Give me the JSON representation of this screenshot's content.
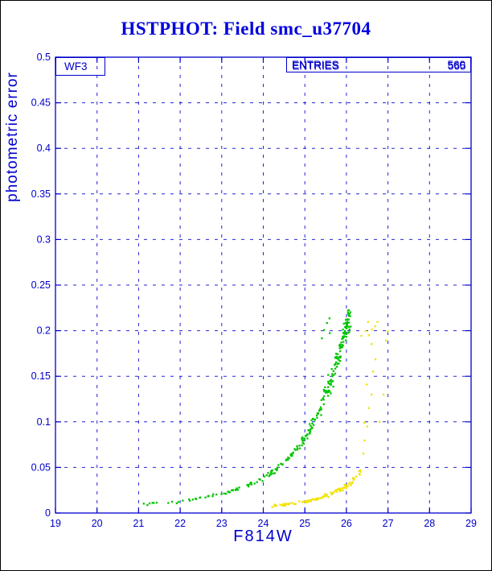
{
  "colors": {
    "background": "#ffffff",
    "frame": "#000000",
    "axis": "#0000cc",
    "title": "#0000dd",
    "green": "#00c400",
    "yellow": "#f2e300"
  },
  "chart_data": {
    "type": "scatter",
    "title": "HSTPHOT: Field smc_u37704",
    "xlabel": "F814W",
    "ylabel": "photometric error",
    "xlim": [
      19,
      29
    ],
    "ylim": [
      0,
      0.5
    ],
    "x_ticks": [
      19,
      20,
      21,
      22,
      23,
      24,
      25,
      26,
      27,
      28,
      29
    ],
    "y_ticks": [
      0,
      0.05,
      0.1,
      0.15,
      0.2,
      0.25,
      0.3,
      0.35,
      0.4,
      0.45,
      0.5
    ],
    "grid": "dashed",
    "legend_position": "none",
    "annotations": {
      "camera_label": "WF3",
      "entries_label": "ENTRIES",
      "entries_value_a": "560",
      "entries_value_b": "565"
    },
    "series": [
      {
        "name": "chip-green-error-curve",
        "color_key": "green",
        "curve": [
          [
            21.0,
            0.01
          ],
          [
            21.3,
            0.01
          ],
          [
            21.6,
            0.011
          ],
          [
            22.0,
            0.013
          ],
          [
            22.3,
            0.015
          ],
          [
            22.6,
            0.017
          ],
          [
            23.0,
            0.021
          ],
          [
            23.3,
            0.025
          ],
          [
            23.6,
            0.03
          ],
          [
            23.9,
            0.036
          ],
          [
            24.2,
            0.044
          ],
          [
            24.5,
            0.055
          ],
          [
            24.8,
            0.07
          ],
          [
            25.0,
            0.082
          ],
          [
            25.2,
            0.098
          ],
          [
            25.4,
            0.118
          ],
          [
            25.6,
            0.142
          ],
          [
            25.8,
            0.172
          ],
          [
            25.95,
            0.195
          ],
          [
            26.05,
            0.21
          ],
          [
            26.1,
            0.215
          ]
        ],
        "counts": [
          3,
          3,
          4,
          4,
          5,
          6,
          7,
          8,
          10,
          12,
          14,
          16,
          14,
          16,
          18,
          22,
          28,
          30,
          26,
          12
        ],
        "x_jitter": 0.06,
        "y_jitter_frac": 0.1,
        "y_jitter_abs": 0.0015,
        "extra_points": [
          [
            25.45,
            0.2
          ],
          [
            25.52,
            0.207
          ],
          [
            25.58,
            0.213
          ],
          [
            25.6,
            0.198
          ],
          [
            25.4,
            0.192
          ]
        ]
      },
      {
        "name": "chip-yellow-error-curve",
        "color_key": "yellow",
        "curve": [
          [
            24.2,
            0.008
          ],
          [
            24.5,
            0.009
          ],
          [
            24.8,
            0.011
          ],
          [
            25.1,
            0.013
          ],
          [
            25.4,
            0.017
          ],
          [
            25.7,
            0.022
          ],
          [
            25.9,
            0.027
          ],
          [
            26.1,
            0.033
          ],
          [
            26.25,
            0.04
          ],
          [
            26.35,
            0.046
          ]
        ],
        "counts": [
          10,
          12,
          12,
          14,
          14,
          12,
          12,
          8,
          6
        ],
        "x_jitter": 0.06,
        "y_jitter_frac": 0.12,
        "y_jitter_abs": 0.002,
        "extra_points": [
          [
            26.42,
            0.065
          ],
          [
            26.45,
            0.08
          ],
          [
            26.5,
            0.095
          ],
          [
            26.42,
            0.1
          ],
          [
            26.55,
            0.115
          ],
          [
            26.6,
            0.13
          ],
          [
            26.5,
            0.14
          ],
          [
            26.65,
            0.155
          ],
          [
            26.7,
            0.17
          ],
          [
            26.6,
            0.185
          ],
          [
            26.55,
            0.195
          ],
          [
            26.62,
            0.2
          ],
          [
            26.68,
            0.205
          ],
          [
            26.75,
            0.21
          ],
          [
            26.45,
            0.2
          ],
          [
            26.35,
            0.195
          ],
          [
            26.52,
            0.21
          ],
          [
            26.9,
            0.13
          ],
          [
            26.8,
            0.1
          ],
          [
            26.95,
            0.19
          ],
          [
            27.0,
            0.2
          ]
        ]
      }
    ]
  }
}
